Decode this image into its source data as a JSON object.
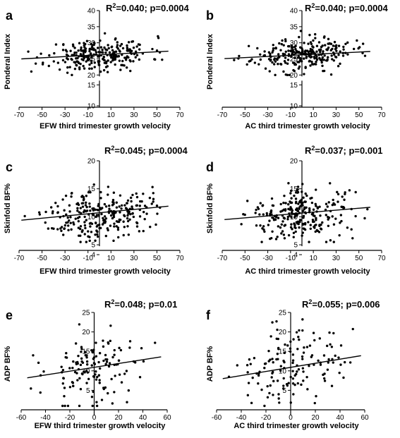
{
  "chart_data": [
    {
      "panel": "a",
      "type": "scatter",
      "stat_prefix": "R",
      "stat_sup": "2",
      "stat_suffix": "=0.040; p=0.0004",
      "xlabel": "EFW third trimester growth velocity",
      "ylabel": "Ponderal Index",
      "xlim": [
        -70,
        70
      ],
      "xticks": [
        -70,
        -50,
        -30,
        -10,
        10,
        30,
        50,
        70
      ],
      "ylim": [
        10,
        40
      ],
      "yticks": [
        10,
        15,
        20,
        25,
        30,
        35,
        40
      ],
      "ybreak": [
        15,
        20
      ],
      "fit": [
        [
          -68,
          25.0
        ],
        [
          60,
          27.4
        ]
      ],
      "seed": 11,
      "n": 260,
      "x_sd": 22,
      "x_range": [
        -68,
        60
      ],
      "y_base": 26.3,
      "y_sd": 2.4,
      "y_range": [
        20,
        36.5
      ]
    },
    {
      "panel": "b",
      "type": "scatter",
      "stat_prefix": "R",
      "stat_sup": "2",
      "stat_suffix": "=0.040; p=0.0004",
      "xlabel": "AC third trimester growth velocity",
      "ylabel": "Ponderal Index",
      "xlim": [
        -70,
        70
      ],
      "xticks": [
        -70,
        -50,
        -30,
        -10,
        10,
        30,
        50,
        70
      ],
      "ylim": [
        10,
        40
      ],
      "yticks": [
        10,
        15,
        20,
        25,
        30,
        35,
        40
      ],
      "ybreak": [
        15,
        20
      ],
      "fit": [
        [
          -68,
          25.1
        ],
        [
          60,
          27.3
        ]
      ],
      "seed": 23,
      "n": 260,
      "x_sd": 22,
      "x_range": [
        -60,
        60
      ],
      "y_base": 26.3,
      "y_sd": 2.4,
      "y_range": [
        20,
        36.5
      ]
    },
    {
      "panel": "c",
      "type": "scatter",
      "stat_prefix": "R",
      "stat_sup": "2",
      "stat_suffix": "=0.045; p=0.0004",
      "xlabel": "EFW third trimester growth velocity",
      "ylabel": "Skinfold BF%",
      "xlim": [
        -70,
        70
      ],
      "xticks": [
        -70,
        -50,
        -30,
        -10,
        10,
        30,
        50,
        70
      ],
      "ylim": [
        4,
        20
      ],
      "yticks": [
        4,
        5,
        10,
        15,
        20
      ],
      "ybreak": [
        4,
        5
      ],
      "fit": [
        [
          -68,
          9.4
        ],
        [
          60,
          11.9
        ]
      ],
      "seed": 37,
      "n": 260,
      "x_sd": 22,
      "x_range": [
        -65,
        60
      ],
      "y_base": 10.5,
      "y_sd": 2.2,
      "y_range": [
        5.5,
        16
      ]
    },
    {
      "panel": "d",
      "type": "scatter",
      "stat_prefix": "R",
      "stat_sup": "2",
      "stat_suffix": "=0.037; p=0.001",
      "xlabel": "AC third trimester growth velocity",
      "ylabel": "Skinfold BF%",
      "xlim": [
        -70,
        70
      ],
      "xticks": [
        -70,
        -50,
        -30,
        -10,
        10,
        30,
        50,
        70
      ],
      "ylim": [
        4,
        20
      ],
      "yticks": [
        4,
        5,
        10,
        15,
        20
      ],
      "ybreak": [
        4,
        5
      ],
      "fit": [
        [
          -68,
          9.5
        ],
        [
          60,
          11.7
        ]
      ],
      "seed": 41,
      "n": 260,
      "x_sd": 22,
      "x_range": [
        -60,
        62
      ],
      "y_base": 10.5,
      "y_sd": 2.2,
      "y_range": [
        5.5,
        16
      ]
    },
    {
      "panel": "e",
      "type": "scatter",
      "stat_prefix": "R",
      "stat_sup": "2",
      "stat_suffix": "=0.048; p=0.01",
      "xlabel": "EFW third trimester growth velocity",
      "ylabel": "ADP BF%",
      "xlim": [
        -60,
        60
      ],
      "xticks": [
        -60,
        -40,
        -20,
        0,
        20,
        40,
        60
      ],
      "ylim": [
        0,
        25
      ],
      "yticks": [
        5,
        10,
        15,
        20,
        25
      ],
      "ybreak": null,
      "fit": [
        [
          -55,
          8.2
        ],
        [
          55,
          13.6
        ]
      ],
      "seed": 53,
      "n": 140,
      "x_sd": 20,
      "x_range": [
        -52,
        50
      ],
      "y_base": 10.5,
      "y_sd": 4.8,
      "y_range": [
        1,
        24
      ]
    },
    {
      "panel": "f",
      "type": "scatter",
      "stat_prefix": "R",
      "stat_sup": "2",
      "stat_suffix": "=0.055; p=0.006",
      "xlabel": "AC third trimester growth velocity",
      "ylabel": "ADP BF%",
      "xlim": [
        -60,
        60
      ],
      "xticks": [
        -60,
        -40,
        -20,
        0,
        20,
        40,
        60
      ],
      "ylim": [
        0,
        25
      ],
      "yticks": [
        5,
        10,
        15,
        20,
        25
      ],
      "ybreak": null,
      "fit": [
        [
          -55,
          8.0
        ],
        [
          57,
          13.9
        ]
      ],
      "seed": 67,
      "n": 140,
      "x_sd": 20,
      "x_range": [
        -50,
        57
      ],
      "y_base": 10.5,
      "y_sd": 4.8,
      "y_range": [
        1,
        24
      ]
    }
  ]
}
